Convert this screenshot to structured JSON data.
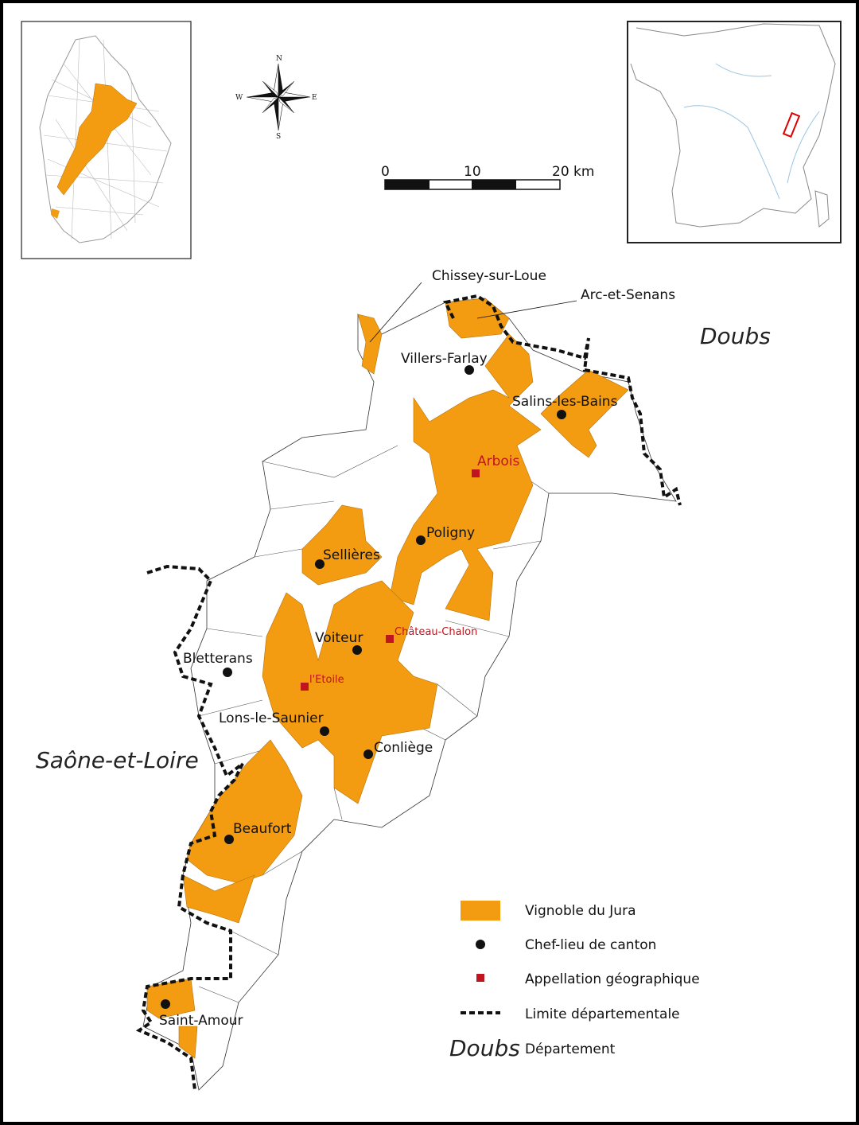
{
  "colors": {
    "vineyard": "#f39c12",
    "appellation": "#c0141e",
    "border": "#111111"
  },
  "compass": {
    "n": "N",
    "s": "S",
    "e": "E",
    "w": "W"
  },
  "scale_bar": {
    "ticks": [
      "0",
      "10",
      "20 km"
    ]
  },
  "departments": {
    "north_east": "Doubs",
    "west": "Saône-et-Loire"
  },
  "places": {
    "chissey": "Chissey-sur-Loue",
    "arc": "Arc-et-Senans",
    "villers": "Villers-Farlay",
    "salins": "Salins-les-Bains",
    "poligny": "Poligny",
    "sellieres": "Sellières",
    "voiteur": "Voiteur",
    "bletterans": "Bletterans",
    "lons": "Lons-le-Saunier",
    "conliege": "Conliège",
    "beaufort": "Beaufort",
    "saint_amour": "Saint-Amour"
  },
  "appellations": {
    "arbois": "Arbois",
    "chateau_chalon": "Château-Chalon",
    "etoile": "l'Etoile"
  },
  "legend": {
    "vineyard": "Vignoble du Jura",
    "chef_lieu": "Chef-lieu de canton",
    "appellation": "Appellation géographique",
    "limit": "Limite départementale",
    "dept_sample": "Doubs",
    "dept": "Département"
  }
}
